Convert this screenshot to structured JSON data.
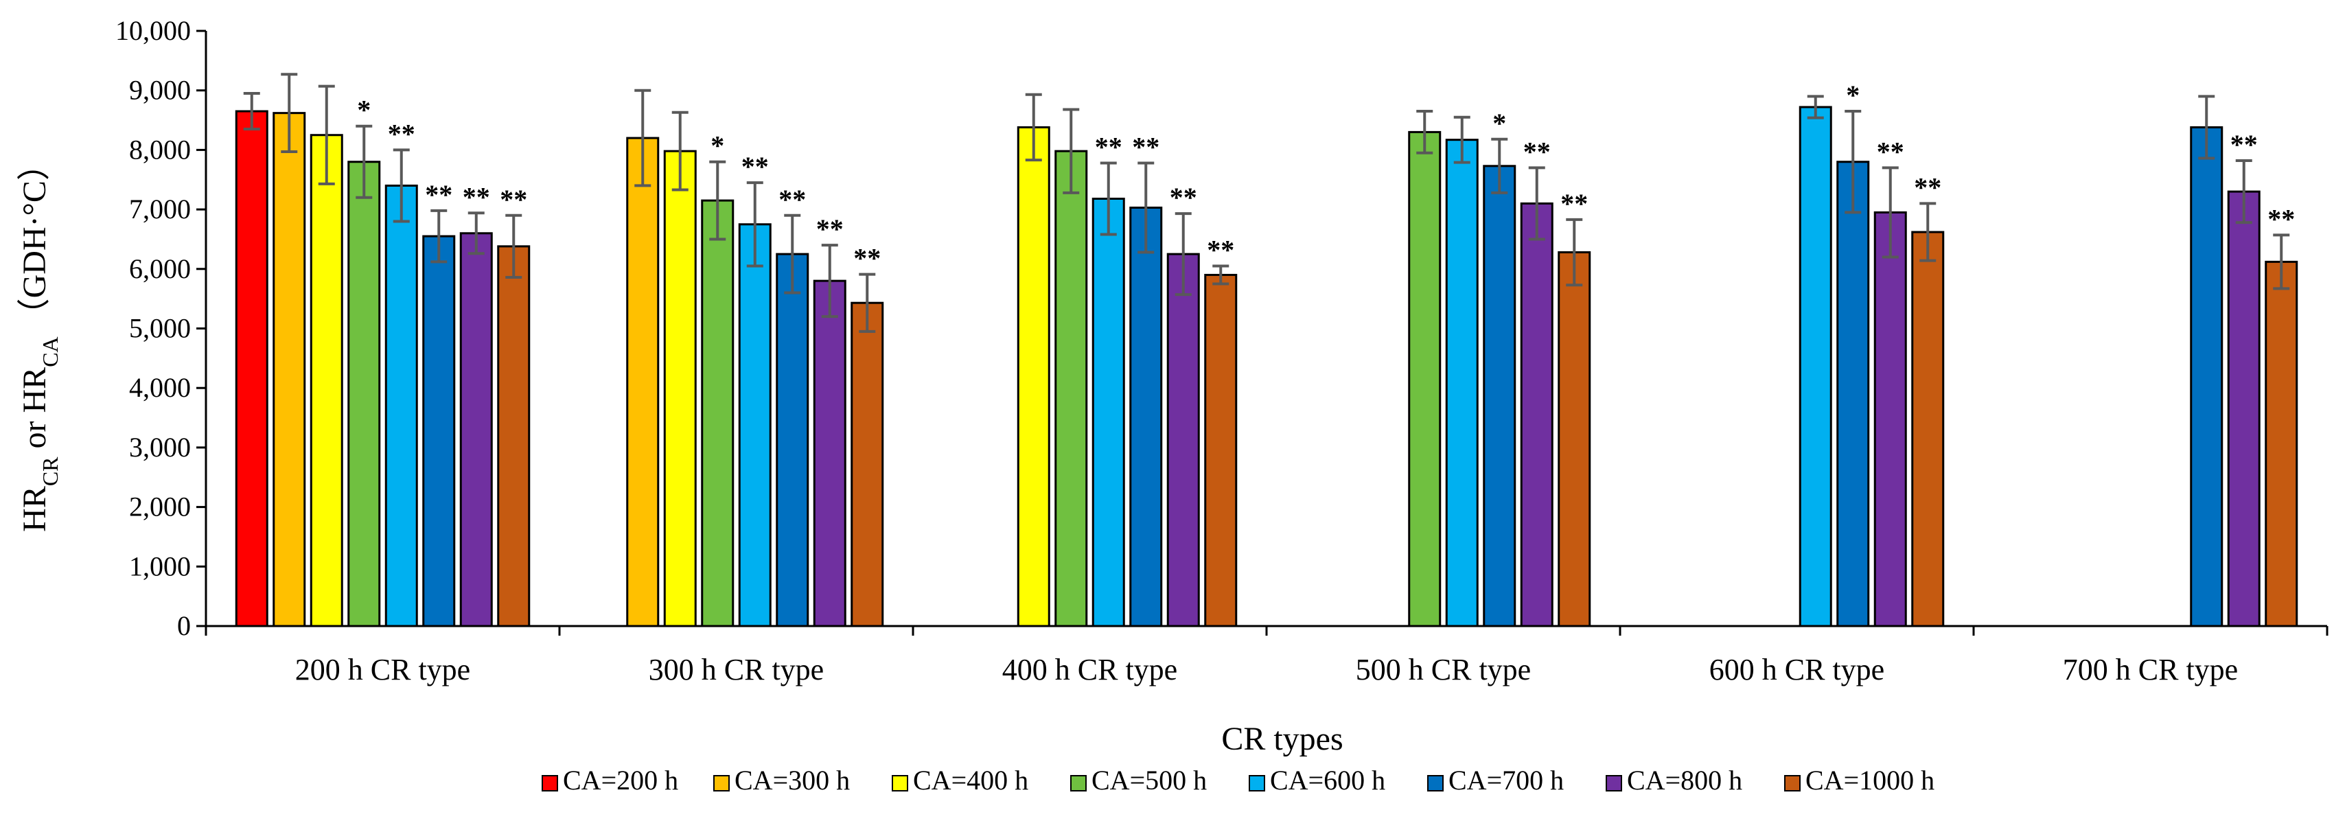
{
  "chart_data": {
    "type": "bar",
    "title": "",
    "xlabel": "CR types",
    "ylabel": "HR CR or HR CA (GDH·°C)",
    "ylim": [
      0,
      10000
    ],
    "yticks": [
      0,
      1000,
      2000,
      3000,
      4000,
      5000,
      6000,
      7000,
      8000,
      9000,
      10000
    ],
    "ytick_labels": [
      "0",
      "1,000",
      "2,000",
      "3,000",
      "4,000",
      "5,000",
      "6,000",
      "7,000",
      "8,000",
      "9,000",
      "10,000"
    ],
    "ylabel_parts": {
      "main1": "HR",
      "sub1": "CR",
      "mid": " or HR",
      "sub2": "CA",
      "unit": "（GDH·°C）"
    },
    "grid": false,
    "legend_position": "bottom",
    "categories": [
      "200 h CR type",
      "300 h CR type",
      "400 h CR type",
      "500 h CR type",
      "600 h CR type",
      "700 h CR type"
    ],
    "series": [
      {
        "name": "CA=200 h",
        "color": "#ff0000",
        "values": [
          8650,
          null,
          null,
          null,
          null,
          null
        ],
        "errors": [
          300,
          null,
          null,
          null,
          null,
          null
        ],
        "sig": [
          "",
          "",
          "",
          "",
          "",
          ""
        ]
      },
      {
        "name": "CA=300 h",
        "color": "#ffc000",
        "values": [
          8620,
          8200,
          null,
          null,
          null,
          null
        ],
        "errors": [
          650,
          800,
          null,
          null,
          null,
          null
        ],
        "sig": [
          "",
          "",
          "",
          "",
          "",
          ""
        ]
      },
      {
        "name": "CA=400 h",
        "color": "#ffff00",
        "values": [
          8250,
          7980,
          8380,
          null,
          null,
          null
        ],
        "errors": [
          820,
          650,
          550,
          null,
          null,
          null
        ],
        "sig": [
          "",
          "",
          "",
          "",
          "",
          ""
        ]
      },
      {
        "name": "CA=500 h",
        "color": "#70c040",
        "values": [
          7800,
          7150,
          7980,
          8300,
          null,
          null
        ],
        "errors": [
          600,
          650,
          700,
          350,
          null,
          null
        ],
        "sig": [
          "*",
          "*",
          "",
          "",
          "",
          ""
        ]
      },
      {
        "name": "CA=600 h",
        "color": "#00b0f0",
        "values": [
          7400,
          6750,
          7180,
          8170,
          8720,
          null
        ],
        "errors": [
          600,
          700,
          600,
          380,
          180,
          null
        ],
        "sig": [
          "**",
          "**",
          "**",
          "",
          "",
          ""
        ]
      },
      {
        "name": "CA=700 h",
        "color": "#0070c0",
        "values": [
          6550,
          6250,
          7030,
          7730,
          7800,
          8380
        ],
        "errors": [
          430,
          650,
          750,
          450,
          850,
          520
        ],
        "sig": [
          "**",
          "**",
          "**",
          "*",
          "*",
          ""
        ]
      },
      {
        "name": "CA=800 h",
        "color": "#7030a0",
        "values": [
          6600,
          5800,
          6250,
          7100,
          6950,
          7300
        ],
        "errors": [
          340,
          600,
          680,
          600,
          750,
          520
        ],
        "sig": [
          "**",
          "**",
          "**",
          "**",
          "**",
          "**"
        ]
      },
      {
        "name": "CA=1000 h",
        "color": "#c55a11",
        "values": [
          6380,
          5430,
          5900,
          6280,
          6620,
          6120
        ],
        "errors": [
          520,
          480,
          150,
          550,
          480,
          450
        ],
        "sig": [
          "**",
          "**",
          "**",
          "**",
          "**",
          "**"
        ]
      }
    ]
  }
}
